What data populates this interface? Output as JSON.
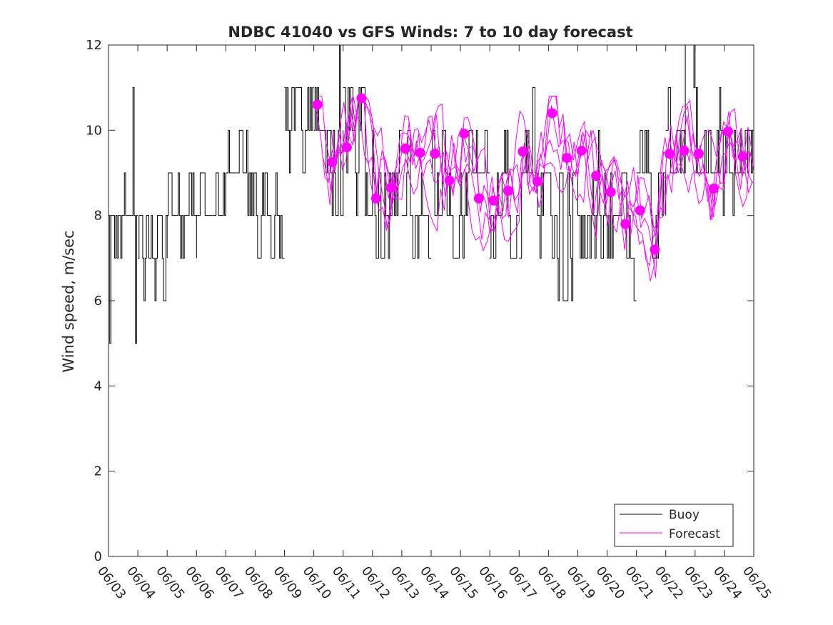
{
  "chart_data": {
    "type": "line",
    "title": "NDBC 41040 vs GFS Winds: 7 to 10 day forecast",
    "xlabel": "",
    "ylabel": "Wind speed, m/sec",
    "ylim": [
      0,
      12
    ],
    "yticks": [
      0,
      2,
      4,
      6,
      8,
      10,
      12
    ],
    "x_units": "days since 06/03 (tick labels show dates)",
    "xlim_dates": [
      "06/03",
      "06/25"
    ],
    "xtick_labels": [
      "06/03",
      "06/04",
      "06/05",
      "06/06",
      "06/07",
      "06/08",
      "06/09",
      "06/10",
      "06/11",
      "06/12",
      "06/13",
      "06/14",
      "06/15",
      "06/16",
      "06/17",
      "06/18",
      "06/19",
      "06/20",
      "06/21",
      "06/22",
      "06/23",
      "06/24",
      "06/25"
    ],
    "grid": false,
    "legend_position": "bottom-right",
    "colors": {
      "buoy": "#000000",
      "forecast": "#ff00ff"
    },
    "series": [
      {
        "name": "Buoy",
        "style": "line",
        "segments": [
          {
            "from": "06/03",
            "to": "06/04",
            "level": 8,
            "min": 5,
            "max": 11
          },
          {
            "from": "06/04",
            "to": "06/05",
            "level": 7,
            "min": 6,
            "max": 8
          },
          {
            "from": "06/05",
            "to": "06/06",
            "level": 8,
            "min": 6,
            "max": 9
          },
          {
            "from": "06/06",
            "to": "06/07",
            "level": 8,
            "min": 8,
            "max": 9
          },
          {
            "from": "06/07",
            "to": "06/08",
            "level": 9,
            "min": 8,
            "max": 10
          },
          {
            "from": "06/08",
            "to": "06/09",
            "level": 8,
            "min": 7,
            "max": 9
          },
          {
            "from": "06/09",
            "to": "06/10",
            "level": 10,
            "min": 9,
            "max": 11
          },
          {
            "from": "06/10",
            "to": "06/11",
            "level": 10,
            "min": 8,
            "max": 12
          },
          {
            "from": "06/11",
            "to": "06/12",
            "level": 10,
            "min": 8,
            "max": 11
          },
          {
            "from": "06/12",
            "to": "06/13",
            "level": 9,
            "min": 7,
            "max": 10
          },
          {
            "from": "06/13",
            "to": "06/14",
            "level": 8,
            "min": 7,
            "max": 10
          },
          {
            "from": "06/14",
            "to": "06/15",
            "level": 8,
            "min": 7,
            "max": 10
          },
          {
            "from": "06/15",
            "to": "06/16",
            "level": 9,
            "min": 7,
            "max": 10
          },
          {
            "from": "06/16",
            "to": "06/17",
            "level": 8,
            "min": 7,
            "max": 10
          },
          {
            "from": "06/17",
            "to": "06/18",
            "level": 9,
            "min": 7,
            "max": 11
          },
          {
            "from": "06/18",
            "to": "06/19",
            "level": 9,
            "min": 6,
            "max": 11
          },
          {
            "from": "06/19",
            "to": "06/20",
            "level": 8,
            "min": 7,
            "max": 10
          },
          {
            "from": "06/20",
            "to": "06/21",
            "level": 7,
            "min": 6,
            "max": 9
          },
          {
            "from": "06/21",
            "to": "06/22",
            "level": 9,
            "min": 7,
            "max": 10
          },
          {
            "from": "06/22",
            "to": "06/23",
            "level": 10,
            "min": 9,
            "max": 12
          },
          {
            "from": "06/23",
            "to": "06/24",
            "level": 9,
            "min": 8,
            "max": 11
          },
          {
            "from": "06/24",
            "to": "06/25",
            "level": 9,
            "min": 8,
            "max": 10
          }
        ]
      },
      {
        "name": "Forecast",
        "style": "line-with-markers",
        "markers": [
          {
            "x": "06/10 03:00",
            "y": 10.6
          },
          {
            "x": "06/10 15:00",
            "y": 9.25
          },
          {
            "x": "06/11 03:00",
            "y": 9.6
          },
          {
            "x": "06/11 15:00",
            "y": 10.75
          },
          {
            "x": "06/12 03:00",
            "y": 8.4
          },
          {
            "x": "06/12 15:00",
            "y": 8.65
          },
          {
            "x": "06/13 03:00",
            "y": 9.57
          },
          {
            "x": "06/13 15:00",
            "y": 9.47
          },
          {
            "x": "06/14 03:00",
            "y": 9.45
          },
          {
            "x": "06/14 15:00",
            "y": 8.82
          },
          {
            "x": "06/15 03:00",
            "y": 9.92
          },
          {
            "x": "06/15 15:00",
            "y": 8.4
          },
          {
            "x": "06/16 03:00",
            "y": 8.35
          },
          {
            "x": "06/16 15:00",
            "y": 8.58
          },
          {
            "x": "06/17 03:00",
            "y": 9.5
          },
          {
            "x": "06/17 15:00",
            "y": 8.8
          },
          {
            "x": "06/18 03:00",
            "y": 10.4
          },
          {
            "x": "06/18 15:00",
            "y": 9.35
          },
          {
            "x": "06/19 03:00",
            "y": 9.52
          },
          {
            "x": "06/19 15:00",
            "y": 8.93
          },
          {
            "x": "06/20 03:00",
            "y": 8.55
          },
          {
            "x": "06/20 15:00",
            "y": 7.8
          },
          {
            "x": "06/21 03:00",
            "y": 8.12
          },
          {
            "x": "06/21 15:00",
            "y": 7.2
          },
          {
            "x": "06/22 03:00",
            "y": 9.45
          },
          {
            "x": "06/22 15:00",
            "y": 9.52
          },
          {
            "x": "06/23 03:00",
            "y": 9.45
          },
          {
            "x": "06/23 15:00",
            "y": 8.63
          },
          {
            "x": "06/24 03:00",
            "y": 9.97
          },
          {
            "x": "06/24 15:00",
            "y": 9.38
          }
        ],
        "spread": {
          "from": "06/10",
          "to": "06/25",
          "min": 6.2,
          "max": 10.8
        }
      }
    ]
  }
}
